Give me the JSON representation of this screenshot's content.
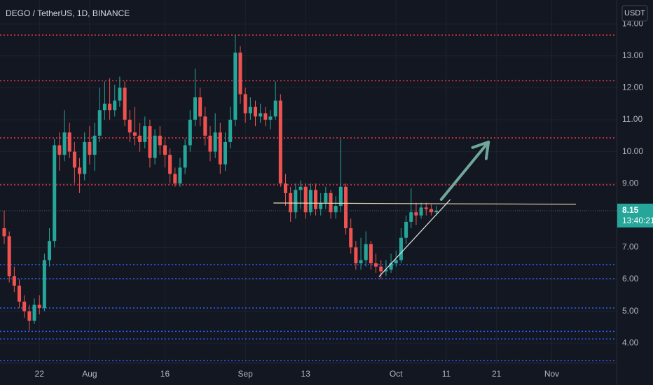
{
  "chart_data": {
    "type": "candlestick",
    "title": "DEGO / TetherUS, 1D, BINANCE",
    "currency": "USDT",
    "up_color": "#26a69a",
    "down_color": "#ef5350",
    "ohlc": [
      [
        7.6,
        8.15,
        7.1,
        7.35
      ],
      [
        7.35,
        7.5,
        5.9,
        6.1
      ],
      [
        6.1,
        6.4,
        5.6,
        5.8
      ],
      [
        5.8,
        6.0,
        5.1,
        5.3
      ],
      [
        5.3,
        5.5,
        4.8,
        5.0
      ],
      [
        5.0,
        5.2,
        4.4,
        4.7
      ],
      [
        4.7,
        5.4,
        4.6,
        5.2
      ],
      [
        5.2,
        5.5,
        4.9,
        5.1
      ],
      [
        5.1,
        6.8,
        5.0,
        6.6
      ],
      [
        6.6,
        7.6,
        6.4,
        7.2
      ],
      [
        7.2,
        10.4,
        7.0,
        10.2
      ],
      [
        10.2,
        10.6,
        9.4,
        9.9
      ],
      [
        9.9,
        11.3,
        9.7,
        10.6
      ],
      [
        10.6,
        10.9,
        9.8,
        10.0
      ],
      [
        10.0,
        10.3,
        9.0,
        9.5
      ],
      [
        9.5,
        9.8,
        8.7,
        9.3
      ],
      [
        9.3,
        10.6,
        9.1,
        10.3
      ],
      [
        10.3,
        10.8,
        9.6,
        9.9
      ],
      [
        9.9,
        10.9,
        9.4,
        10.5
      ],
      [
        10.5,
        12.0,
        10.3,
        11.3
      ],
      [
        11.3,
        12.2,
        11.0,
        11.5
      ],
      [
        11.5,
        12.3,
        11.0,
        11.3
      ],
      [
        11.3,
        12.1,
        11.1,
        11.6
      ],
      [
        11.6,
        12.35,
        11.4,
        12.0
      ],
      [
        12.0,
        12.2,
        10.8,
        11.0
      ],
      [
        11.0,
        11.3,
        10.3,
        10.6
      ],
      [
        10.6,
        11.4,
        10.2,
        10.5
      ],
      [
        10.5,
        10.9,
        10.0,
        10.3
      ],
      [
        10.3,
        11.1,
        10.1,
        10.8
      ],
      [
        10.8,
        11.0,
        9.5,
        9.8
      ],
      [
        9.8,
        10.7,
        9.6,
        10.5
      ],
      [
        10.5,
        10.8,
        9.9,
        10.2
      ],
      [
        10.2,
        10.4,
        9.5,
        9.9
      ],
      [
        9.9,
        10.1,
        9.0,
        9.3
      ],
      [
        9.3,
        9.5,
        8.9,
        9.0
      ],
      [
        9.0,
        9.8,
        8.9,
        9.5
      ],
      [
        9.5,
        10.4,
        9.3,
        10.2
      ],
      [
        10.2,
        11.3,
        10.0,
        11.0
      ],
      [
        11.0,
        12.6,
        10.8,
        11.7
      ],
      [
        11.7,
        12.0,
        10.8,
        11.1
      ],
      [
        11.1,
        11.4,
        10.2,
        10.5
      ],
      [
        10.5,
        10.8,
        9.7,
        10.0
      ],
      [
        10.0,
        11.2,
        9.8,
        10.6
      ],
      [
        10.6,
        10.9,
        9.3,
        9.6
      ],
      [
        9.6,
        10.6,
        9.4,
        10.3
      ],
      [
        10.3,
        11.4,
        10.1,
        11.0
      ],
      [
        11.0,
        13.65,
        10.8,
        13.1
      ],
      [
        13.1,
        13.3,
        11.5,
        11.8
      ],
      [
        11.8,
        12.0,
        10.9,
        11.2
      ],
      [
        11.2,
        11.7,
        11.0,
        11.4
      ],
      [
        11.4,
        11.6,
        10.8,
        11.1
      ],
      [
        11.1,
        11.5,
        10.9,
        11.2
      ],
      [
        11.2,
        11.4,
        10.8,
        11.0
      ],
      [
        11.0,
        11.3,
        10.7,
        11.1
      ],
      [
        11.1,
        12.2,
        11.0,
        11.6
      ],
      [
        11.6,
        11.8,
        8.9,
        9.0
      ],
      [
        9.0,
        9.3,
        8.3,
        8.7
      ],
      [
        8.7,
        8.9,
        7.8,
        8.1
      ],
      [
        8.1,
        9.0,
        7.9,
        8.8
      ],
      [
        8.8,
        9.1,
        8.2,
        8.9
      ],
      [
        8.9,
        9.0,
        7.9,
        8.1
      ],
      [
        8.1,
        9.0,
        8.0,
        8.8
      ],
      [
        8.8,
        9.0,
        8.0,
        8.2
      ],
      [
        8.2,
        8.7,
        8.0,
        8.4
      ],
      [
        8.4,
        8.9,
        8.2,
        8.7
      ],
      [
        8.7,
        8.8,
        7.9,
        8.1
      ],
      [
        8.1,
        8.6,
        7.9,
        8.3
      ],
      [
        8.3,
        10.4,
        8.1,
        8.9
      ],
      [
        8.9,
        9.0,
        7.4,
        7.6
      ],
      [
        7.6,
        7.9,
        6.8,
        7.0
      ],
      [
        7.0,
        7.2,
        6.3,
        6.5
      ],
      [
        6.5,
        7.3,
        6.3,
        6.6
      ],
      [
        6.6,
        7.5,
        6.4,
        7.1
      ],
      [
        7.1,
        7.2,
        6.3,
        6.5
      ],
      [
        6.5,
        6.8,
        6.2,
        6.4
      ],
      [
        6.4,
        6.6,
        6.0,
        6.25
      ],
      [
        6.25,
        6.6,
        6.1,
        6.3
      ],
      [
        6.3,
        6.8,
        6.2,
        6.5
      ],
      [
        6.5,
        6.9,
        6.4,
        6.6
      ],
      [
        6.6,
        7.6,
        6.5,
        7.3
      ],
      [
        7.3,
        8.0,
        7.1,
        7.8
      ],
      [
        7.8,
        8.85,
        7.6,
        8.1
      ],
      [
        8.1,
        8.4,
        7.7,
        8.0
      ],
      [
        8.0,
        8.4,
        7.9,
        8.25
      ],
      [
        8.25,
        8.4,
        8.0,
        8.2
      ],
      [
        8.2,
        8.35,
        8.0,
        8.1
      ],
      [
        8.1,
        8.3,
        8.05,
        8.15
      ]
    ],
    "xlim": [
      -0.84,
      121.9
    ],
    "xticks": [
      {
        "value": 7,
        "label": "22"
      },
      {
        "value": 17,
        "label": "Aug"
      },
      {
        "value": 32,
        "label": "16"
      },
      {
        "value": 48,
        "label": "Sep"
      },
      {
        "value": 60,
        "label": "13"
      },
      {
        "value": 78,
        "label": "Oct"
      },
      {
        "value": 88,
        "label": "11"
      },
      {
        "value": 98,
        "label": "21"
      },
      {
        "value": 109,
        "label": "Nov"
      }
    ],
    "ylim": [
      3.39,
      14.75
    ],
    "yticks": [
      {
        "value": 14,
        "label": "14.00"
      },
      {
        "value": 13,
        "label": "13.00"
      },
      {
        "value": 12,
        "label": "12.00"
      },
      {
        "value": 11,
        "label": "11.00"
      },
      {
        "value": 10,
        "label": "10.00"
      },
      {
        "value": 9,
        "label": "9.00"
      },
      {
        "value": 7,
        "label": "7.00"
      },
      {
        "value": 6,
        "label": "6.00"
      },
      {
        "value": 5,
        "label": "5.00"
      },
      {
        "value": 4,
        "label": "4.00"
      }
    ],
    "last_price": 8.15,
    "countdown": "13:40:21",
    "levels": [
      {
        "price": 13.65,
        "color": "#f23645"
      },
      {
        "price": 12.22,
        "color": "#f23645"
      },
      {
        "price": 10.43,
        "color": "#f23645"
      },
      {
        "price": 8.96,
        "color": "#f23645"
      },
      {
        "price": 6.46,
        "color": "#2962ff"
      },
      {
        "price": 6.02,
        "color": "#2962ff"
      },
      {
        "price": 5.1,
        "color": "#2962ff"
      },
      {
        "price": 4.37,
        "color": "#2962ff"
      },
      {
        "price": 4.13,
        "color": "#2962ff"
      },
      {
        "price": 3.45,
        "color": "#2962ff"
      }
    ],
    "trend_lines": [
      {
        "points": [
          [
            53.6,
            8.39
          ],
          [
            113.8,
            8.35
          ]
        ],
        "color": "#e6dcb4"
      },
      {
        "points": [
          [
            74.6,
            6.08
          ],
          [
            88.8,
            8.5
          ]
        ],
        "color": "#e8e8e8"
      }
    ],
    "arrow": {
      "points": [
        [
          87,
          8.5
        ],
        [
          96.4,
          10.3
        ]
      ],
      "color": "#6fa89a"
    }
  }
}
